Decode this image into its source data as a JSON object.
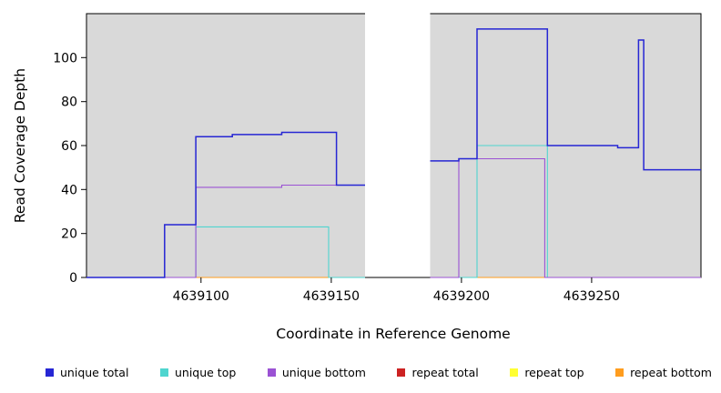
{
  "chart_data": {
    "type": "line",
    "title": "",
    "xlabel": "Coordinate in Reference Genome",
    "ylabel": "Read Coverage Depth",
    "xlim": [
      4639056,
      4639292
    ],
    "ylim": [
      0,
      120
    ],
    "x_ticks": [
      4639100,
      4639150,
      4639200,
      4639250
    ],
    "y_ticks": [
      0,
      20,
      40,
      60,
      80,
      100
    ],
    "plot_background": "#d9d9d9",
    "shaded_regions": [
      {
        "from": 4639056,
        "to": 4639163,
        "color": "#d9d9d9"
      },
      {
        "from": 4639188,
        "to": 4639292,
        "color": "#d9d9d9"
      }
    ],
    "gap_region": {
      "from": 4639163,
      "to": 4639188
    },
    "series": [
      {
        "name": "unique total",
        "color": "#2626d4",
        "segments": [
          [
            [
              4639056,
              0
            ],
            [
              4639086,
              0
            ],
            [
              4639086,
              24
            ],
            [
              4639098,
              24
            ],
            [
              4639098,
              64
            ],
            [
              4639112,
              64
            ],
            [
              4639112,
              65
            ],
            [
              4639131,
              65
            ],
            [
              4639131,
              66
            ],
            [
              4639152,
              66
            ],
            [
              4639152,
              42
            ],
            [
              4639163,
              42
            ]
          ],
          [
            [
              4639188,
              53
            ],
            [
              4639199,
              53
            ],
            [
              4639199,
              54
            ],
            [
              4639206,
              54
            ],
            [
              4639206,
              113
            ],
            [
              4639233,
              113
            ],
            [
              4639233,
              60
            ],
            [
              4639260,
              60
            ],
            [
              4639260,
              59
            ],
            [
              4639268,
              59
            ],
            [
              4639268,
              108
            ],
            [
              4639270,
              108
            ],
            [
              4639270,
              49
            ],
            [
              4639292,
              49
            ]
          ]
        ]
      },
      {
        "name": "unique top",
        "color": "#4fd5cf",
        "segments": [
          [
            [
              4639056,
              0
            ],
            [
              4639098,
              0
            ],
            [
              4639098,
              23
            ],
            [
              4639149,
              23
            ],
            [
              4639149,
              0
            ],
            [
              4639163,
              0
            ]
          ],
          [
            [
              4639188,
              0
            ],
            [
              4639206,
              0
            ],
            [
              4639206,
              60
            ],
            [
              4639233,
              60
            ],
            [
              4639233,
              0
            ],
            [
              4639292,
              0
            ]
          ]
        ]
      },
      {
        "name": "unique bottom",
        "color": "#9b52d4",
        "segments": [
          [
            [
              4639056,
              0
            ],
            [
              4639098,
              0
            ],
            [
              4639098,
              41
            ],
            [
              4639131,
              41
            ],
            [
              4639131,
              42
            ],
            [
              4639163,
              42
            ]
          ],
          [
            [
              4639188,
              0
            ],
            [
              4639199,
              0
            ],
            [
              4639199,
              54
            ],
            [
              4639232,
              54
            ],
            [
              4639232,
              0
            ],
            [
              4639292,
              0
            ]
          ]
        ]
      },
      {
        "name": "repeat total",
        "color": "#cc2222",
        "segments": [
          [
            [
              4639056,
              0
            ],
            [
              4639163,
              0
            ]
          ],
          [
            [
              4639188,
              0
            ],
            [
              4639292,
              0
            ]
          ]
        ]
      },
      {
        "name": "repeat top",
        "color": "#ffff33",
        "segments": [
          [
            [
              4639056,
              0
            ],
            [
              4639163,
              0
            ]
          ],
          [
            [
              4639188,
              0
            ],
            [
              4639292,
              0
            ]
          ]
        ]
      },
      {
        "name": "repeat bottom",
        "color": "#ff9d1e",
        "segments": [
          [
            [
              4639056,
              0
            ],
            [
              4639163,
              0
            ]
          ],
          [
            [
              4639188,
              0
            ],
            [
              4639292,
              0
            ]
          ]
        ]
      }
    ],
    "legend": [
      {
        "label": "unique total",
        "color": "#2626d4"
      },
      {
        "label": "unique top",
        "color": "#4fd5cf"
      },
      {
        "label": "unique bottom",
        "color": "#9b52d4"
      },
      {
        "label": "repeat total",
        "color": "#cc2222"
      },
      {
        "label": "repeat top",
        "color": "#ffff33"
      },
      {
        "label": "repeat bottom",
        "color": "#ff9d1e"
      }
    ]
  }
}
